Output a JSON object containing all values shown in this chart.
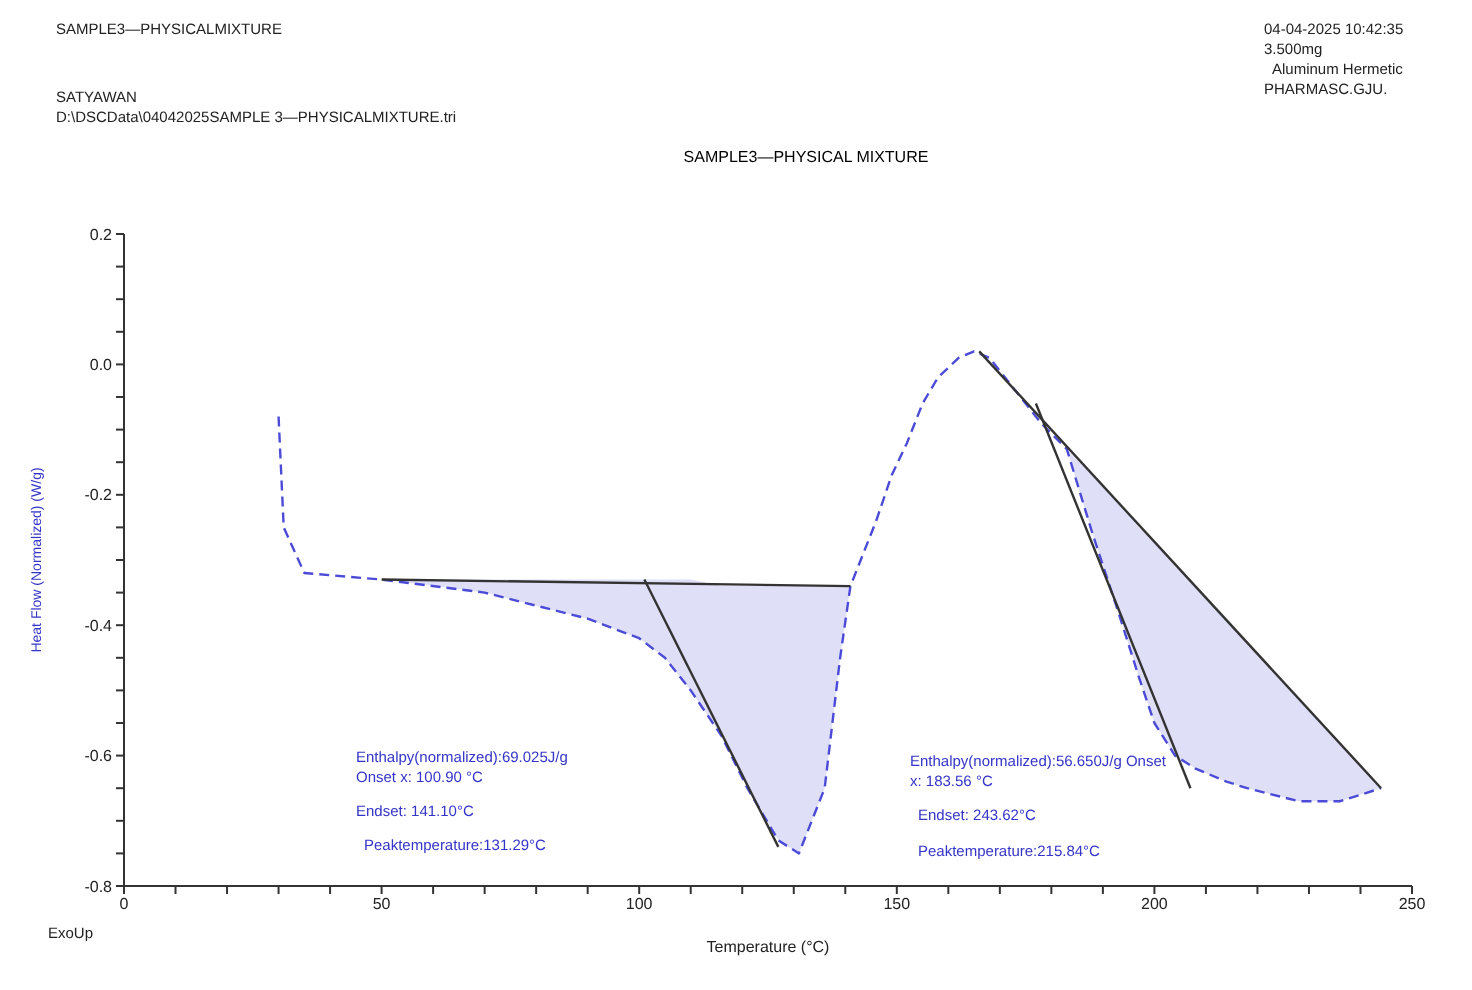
{
  "chart_data": {
    "type": "line",
    "title": "SAMPLE3—PHYSICAL MIXTURE",
    "xlabel": "Temperature (°C)",
    "ylabel": "Heat Flow (Normalized) (W/g)",
    "annotations": [
      "SAMPLE3—PHYSICALMIXTURE",
      "SATYAWAN",
      "D:\\DSCData\\04042025SAMPLE 3—PHYSICALMIXTURE.tri",
      "04-04-2025 10:42:35",
      "3.500mg",
      "Aluminum Hermetic",
      "PHARMASC.GJU.",
      "ExoUp",
      "Enthalpy(normalized):69.025J/g",
      "Onset x: 100.90 °C",
      "Endset: 141.10°C",
      "Peaktemperature:131.29°C",
      "Enthalpy(normalized):56.650J/g Onset",
      "x: 183.56 °C",
      "Endset: 243.62°C",
      "Peaktemperature:215.84°C"
    ],
    "xlim": [
      0,
      250
    ],
    "ylim": [
      -0.8,
      0.2
    ],
    "xticks": [
      0,
      {
        "value": 10,
        "label": null
      },
      {
        "value": 20,
        "label": null
      },
      {
        "value": 30,
        "label": null
      },
      {
        "value": 40,
        "label": null
      },
      50,
      {
        "value": 60,
        "label": null
      },
      {
        "value": 70,
        "label": null
      },
      {
        "value": 80,
        "label": null
      },
      {
        "value": 90,
        "label": null
      },
      100,
      {
        "value": 110,
        "label": null
      },
      {
        "value": 120,
        "label": null
      },
      {
        "value": 130,
        "label": null
      },
      {
        "value": 140,
        "label": null
      },
      150,
      {
        "value": 160,
        "label": null
      },
      {
        "value": 170,
        "label": null
      },
      {
        "value": 180,
        "label": null
      },
      {
        "value": 190,
        "label": null
      },
      200,
      {
        "value": 210,
        "label": null
      },
      {
        "value": 220,
        "label": null
      },
      {
        "value": 230,
        "label": null
      },
      {
        "value": 240,
        "label": null
      },
      250
    ],
    "yticks": [
      {
        "value": -0.8,
        "label": "-0.8"
      },
      {
        "value": -0.75,
        "label": null
      },
      {
        "value": -0.7,
        "label": null
      },
      {
        "value": -0.65,
        "label": null
      },
      {
        "value": -0.6,
        "label": "-0.6"
      },
      {
        "value": -0.55,
        "label": null
      },
      {
        "value": -0.5,
        "label": null
      },
      {
        "value": -0.45,
        "label": null
      },
      {
        "value": -0.4,
        "label": "-0.4"
      },
      {
        "value": -0.35,
        "label": null
      },
      {
        "value": -0.3,
        "label": null
      },
      {
        "value": -0.25,
        "label": null
      },
      {
        "value": -0.2,
        "label": "-0.2"
      },
      {
        "value": -0.15,
        "label": null
      },
      {
        "value": -0.1,
        "label": null
      },
      {
        "value": -0.05,
        "label": null
      },
      {
        "value": 0,
        "label": "0.0"
      },
      {
        "value": 0.05,
        "label": null
      },
      {
        "value": 0.1,
        "label": null
      },
      {
        "value": 0.15,
        "label": null
      },
      {
        "value": 0.2,
        "label": "0.2"
      }
    ],
    "series": [
      {
        "color": "#4b4bd8",
        "line_style": "dashed",
        "x": [
          30,
          31,
          35,
          50,
          70,
          90,
          100,
          105,
          110,
          116,
          121,
          127,
          131,
          136,
          139,
          141,
          143,
          146,
          149,
          152,
          155,
          158,
          162,
          165,
          168,
          172,
          178,
          183,
          188,
          193,
          197,
          200,
          204,
          208,
          214,
          218,
          228,
          236,
          244
        ],
        "values": [
          -0.08,
          -0.25,
          -0.32,
          -0.33,
          -0.35,
          -0.39,
          -0.42,
          -0.45,
          -0.5,
          -0.57,
          -0.65,
          -0.73,
          -0.75,
          -0.65,
          -0.45,
          -0.34,
          -0.3,
          -0.24,
          -0.17,
          -0.12,
          -0.06,
          -0.02,
          0.01,
          0.02,
          0.01,
          -0.03,
          -0.09,
          -0.13,
          -0.26,
          -0.38,
          -0.48,
          -0.55,
          -0.6,
          -0.62,
          -0.64,
          -0.65,
          -0.67,
          -0.67,
          -0.65
        ],
        "lower": [
          null,
          null,
          null,
          -0.33,
          -0.35,
          -0.39,
          -0.42,
          -0.45,
          -0.5,
          -0.57,
          -0.65,
          -0.73,
          -0.75,
          -0.65,
          -0.45,
          -0.34,
          null,
          null,
          null,
          null,
          null,
          null,
          null,
          null,
          null,
          null,
          null,
          -0.13,
          -0.26,
          -0.38,
          -0.48,
          -0.55,
          -0.6,
          -0.62,
          -0.64,
          -0.65,
          -0.67,
          -0.67,
          -0.65
        ],
        "upper": [
          null,
          null,
          null,
          -0.33,
          -0.33,
          -0.33,
          -0.33,
          -0.33,
          -0.33,
          -0.34,
          -0.34,
          -0.34,
          -0.34,
          -0.34,
          -0.34,
          -0.34,
          null,
          null,
          null,
          null,
          null,
          null,
          null,
          null,
          null,
          null,
          null,
          -0.13,
          -0.17,
          -0.21,
          -0.25,
          -0.27,
          -0.31,
          -0.34,
          -0.39,
          -0.43,
          -0.51,
          -0.58,
          -0.65
        ]
      },
      {
        "color": "#333333",
        "line_style": "solid",
        "x": [
          50,
          141
        ],
        "values": [
          -0.33,
          -0.34
        ]
      },
      {
        "color": "#333333",
        "line_style": "solid",
        "x": [
          101,
          127
        ],
        "values": [
          -0.33,
          -0.74
        ]
      },
      {
        "color": "#333333",
        "line_style": "solid",
        "x": [
          166,
          244
        ],
        "values": [
          0.02,
          -0.65
        ]
      },
      {
        "color": "#333333",
        "line_style": "solid",
        "x": [
          177,
          207
        ],
        "values": [
          -0.06,
          -0.65
        ]
      }
    ]
  }
}
